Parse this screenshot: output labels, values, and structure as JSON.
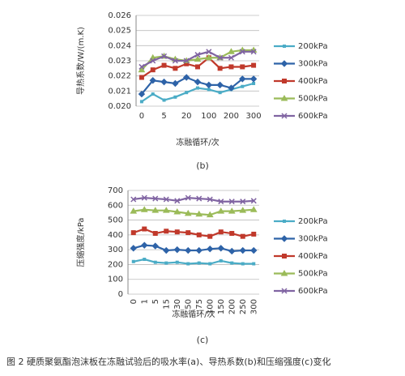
{
  "chart_data": [
    {
      "type": "line",
      "caption": "(b)",
      "xlabel": "冻融循环/次",
      "ylabel": "导热系数/W/(m.K)",
      "categories": [
        "0",
        null,
        "5",
        null,
        "20",
        null,
        "100",
        null,
        "200",
        null,
        "300"
      ],
      "ylim": [
        0.02,
        0.026
      ],
      "yticks": [
        {
          "value": 0.02,
          "label": "0.020"
        },
        {
          "value": 0.021,
          "label": "0.021"
        },
        {
          "value": 0.022,
          "label": "0.022"
        },
        {
          "value": 0.023,
          "label": "0.023"
        },
        {
          "value": 0.024,
          "label": "0.024"
        },
        {
          "value": 0.025,
          "label": "0.025"
        },
        {
          "value": 0.026,
          "label": "0.026"
        }
      ],
      "grid": true,
      "series": [
        {
          "name": "200kPa",
          "color": "#4bacc6",
          "values": [
            0.0203,
            0.0208,
            0.0204,
            0.0206,
            0.0209,
            0.0212,
            0.0211,
            0.0209,
            0.0211,
            0.0213,
            0.0215
          ]
        },
        {
          "name": "300kPa",
          "color": "#2e63a8",
          "values": [
            0.0208,
            0.0217,
            0.0216,
            0.0215,
            0.0219,
            0.0216,
            0.0214,
            0.0214,
            0.0212,
            0.0218,
            0.0218
          ]
        },
        {
          "name": "400kPa",
          "color": "#c0392b",
          "values": [
            0.0219,
            0.0224,
            0.0227,
            0.0225,
            0.0228,
            0.0226,
            0.0232,
            0.0225,
            0.0226,
            0.0226,
            0.0227
          ]
        },
        {
          "name": "500kPa",
          "color": "#9bbb59",
          "values": [
            0.0224,
            0.0232,
            0.0233,
            0.0231,
            0.023,
            0.0231,
            0.0232,
            0.0232,
            0.0236,
            0.0237,
            0.0237
          ]
        },
        {
          "name": "600kPa",
          "color": "#8064a2",
          "values": [
            0.0226,
            0.023,
            0.0233,
            0.023,
            0.023,
            0.0234,
            0.0236,
            0.0232,
            0.0232,
            0.0236,
            0.0236
          ]
        }
      ]
    },
    {
      "type": "line",
      "caption": "(c)",
      "xlabel": "冻融循环/次",
      "ylabel": "压缩强度/kPa",
      "categories": [
        "0",
        "1",
        "5",
        "15",
        "30",
        "50",
        "75",
        "100",
        "150",
        "200",
        "250",
        "300"
      ],
      "ylim": [
        0,
        700
      ],
      "yticks": [
        0,
        100,
        200,
        300,
        400,
        500,
        600,
        700
      ],
      "grid": true,
      "series": [
        {
          "name": "200kPa",
          "color": "#4bacc6",
          "values": [
            220,
            235,
            215,
            210,
            215,
            205,
            210,
            205,
            225,
            210,
            205,
            205
          ]
        },
        {
          "name": "300kPa",
          "color": "#2e63a8",
          "values": [
            310,
            330,
            325,
            295,
            300,
            295,
            295,
            305,
            310,
            290,
            295,
            295
          ]
        },
        {
          "name": "400kPa",
          "color": "#c0392b",
          "values": [
            415,
            440,
            410,
            425,
            420,
            415,
            400,
            390,
            420,
            410,
            390,
            405
          ]
        },
        {
          "name": "500kPa",
          "color": "#9bbb59",
          "values": [
            560,
            570,
            565,
            565,
            555,
            545,
            540,
            535,
            560,
            560,
            565,
            570
          ]
        },
        {
          "name": "600kPa",
          "color": "#8064a2",
          "values": [
            640,
            650,
            645,
            640,
            630,
            650,
            645,
            640,
            625,
            625,
            625,
            630
          ]
        }
      ]
    }
  ],
  "caption": "图 2  硬质聚氨酯泡沫板在冻融试验后的吸水率(a)、导热系数(b)和压缩强度(c)变化"
}
